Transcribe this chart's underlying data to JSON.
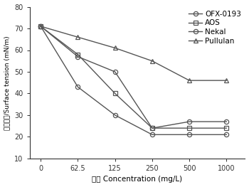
{
  "x": [
    0,
    62.5,
    125,
    250,
    500,
    1000
  ],
  "x_positions": [
    0,
    1,
    2,
    3,
    4,
    5
  ],
  "x_labels": [
    "0",
    "62.5",
    "125",
    "250",
    "500",
    "1000"
  ],
  "series": {
    "OFX-0193": [
      71,
      43,
      30,
      21,
      21,
      21
    ],
    "AOS": [
      71,
      58,
      40,
      24,
      24,
      24
    ],
    "Nekal": [
      71,
      57,
      50,
      24,
      27,
      27
    ],
    "Pullulan": [
      71,
      66,
      61,
      55,
      46,
      46
    ]
  },
  "markers": {
    "OFX-0193": "o",
    "AOS": "s",
    "Nekal": "o",
    "Pullulan": "^"
  },
  "title": "",
  "xlabel": "浓度 Concentration (mg/L)",
  "ylabel": "表面张力/Surface tension (mN/m)",
  "ylim": [
    10,
    80
  ],
  "yticks": [
    10,
    20,
    30,
    40,
    50,
    60,
    70,
    80
  ],
  "legend_labels": [
    "OFX-0193",
    "AOS",
    "Nekal",
    "Pullulan"
  ],
  "background_color": "#ffffff",
  "line_color": "#555555",
  "markersize": 4.5,
  "linewidth": 1.0,
  "legend_fontsize": 7.5,
  "axis_fontsize": 7.5,
  "tick_fontsize": 7
}
